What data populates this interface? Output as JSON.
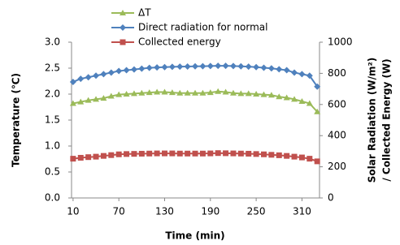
{
  "chart_data": {
    "type": "line",
    "xlabel": "Time (min)",
    "ylabel": "Temperature (℃)",
    "y2label": [
      "Solar  Radiation (W/m²)",
      "/ Collected Energy (W)"
    ],
    "x": [
      10,
      20,
      30,
      40,
      50,
      60,
      70,
      80,
      90,
      100,
      110,
      120,
      130,
      140,
      150,
      160,
      170,
      180,
      190,
      200,
      210,
      220,
      230,
      240,
      250,
      260,
      270,
      280,
      290,
      300,
      310,
      320,
      330
    ],
    "xlim": [
      8,
      333
    ],
    "xticks": [
      10,
      70,
      130,
      190,
      250,
      310
    ],
    "ylim": [
      0,
      3
    ],
    "yticks": [
      {
        "value": 0,
        "label": "0.0"
      },
      0.5,
      {
        "value": 1,
        "label": "1.0"
      },
      1.5,
      {
        "value": 2,
        "label": "2.0"
      },
      2.5,
      {
        "value": 3,
        "label": "3.0"
      }
    ],
    "y2lim": [
      0,
      1000
    ],
    "y2ticks": [
      0,
      200,
      400,
      600,
      800,
      1000
    ],
    "series": [
      {
        "name": "ΔT",
        "color": "#9bbb59",
        "marker": "triangle",
        "values": [
          1.82,
          1.85,
          1.88,
          1.9,
          1.92,
          1.96,
          1.99,
          2.0,
          2.01,
          2.02,
          2.03,
          2.04,
          2.04,
          2.03,
          2.02,
          2.02,
          2.02,
          2.02,
          2.03,
          2.05,
          2.04,
          2.02,
          2.01,
          2.01,
          2.0,
          1.99,
          1.98,
          1.95,
          1.93,
          1.9,
          1.86,
          1.82,
          1.66
        ]
      },
      {
        "name": "Direct radiation for normal",
        "color": "#4f81bd",
        "marker": "diamond",
        "axis": "y2",
        "values": [
          745,
          765,
          775,
          785,
          795,
          805,
          815,
          820,
          825,
          830,
          835,
          838,
          840,
          842,
          843,
          844,
          845,
          846,
          847,
          848,
          848,
          847,
          845,
          843,
          840,
          836,
          832,
          826,
          820,
          805,
          795,
          785,
          715
        ]
      },
      {
        "name": "Collected energy",
        "color": "#c0504d",
        "marker": "square",
        "axis": "y2",
        "values": [
          252,
          258,
          262,
          265,
          270,
          275,
          280,
          282,
          283,
          284,
          285,
          286,
          286,
          286,
          285,
          285,
          285,
          285,
          286,
          288,
          287,
          286,
          285,
          284,
          282,
          280,
          277,
          274,
          270,
          265,
          260,
          252,
          235
        ]
      }
    ]
  }
}
